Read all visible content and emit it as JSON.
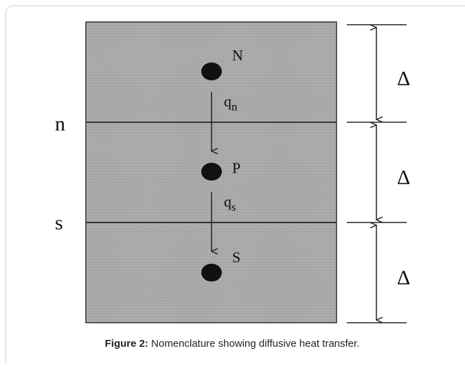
{
  "diagram": {
    "nodes": [
      {
        "label": "N"
      },
      {
        "label": "P"
      },
      {
        "label": "S"
      }
    ],
    "faces": [
      "n",
      "s"
    ],
    "fluxes": [
      {
        "symbol": "q",
        "subscript": "n"
      },
      {
        "symbol": "q",
        "subscript": "s"
      }
    ],
    "spacing": [
      "Δ",
      "Δ",
      "Δ"
    ]
  },
  "caption": {
    "label": "Figure 2:",
    "text": "Nomenclature showing diffusive heat transfer."
  }
}
